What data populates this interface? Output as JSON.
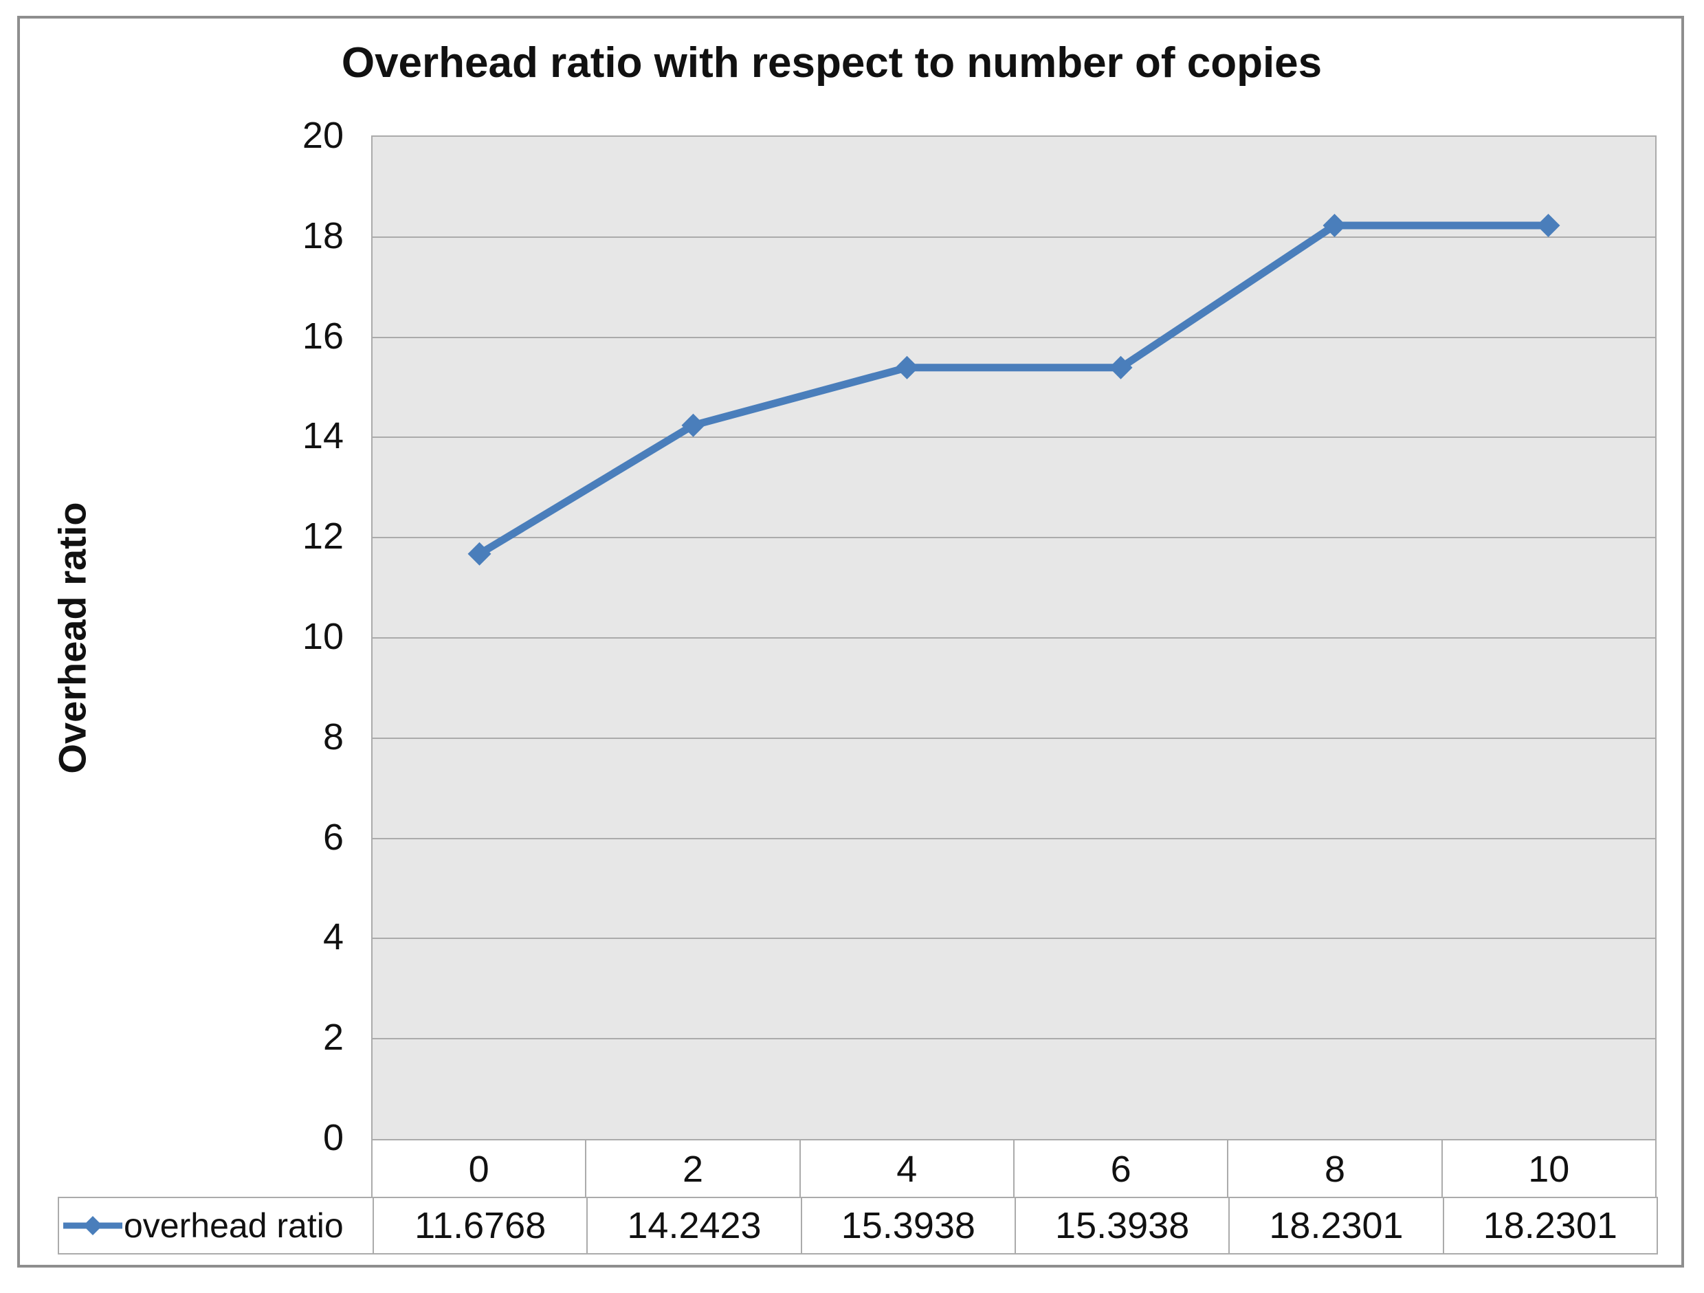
{
  "chart_data": {
    "type": "line",
    "title": "Overhead ratio with respect to number of copies",
    "ylabel": "Overhead ratio",
    "xlabel": "",
    "categories": [
      "0",
      "2",
      "4",
      "6",
      "8",
      "10"
    ],
    "series": [
      {
        "name": "overhead ratio",
        "values": [
          11.6768,
          14.2423,
          15.3938,
          15.3938,
          18.2301,
          18.2301
        ]
      }
    ],
    "ylim": [
      0,
      20
    ],
    "ytick_step": 2,
    "grid": "horizontal-major",
    "legend_position": "bottom-left-of-data-table",
    "marker": "diamond",
    "value_decimals": 4
  },
  "colors": {
    "series": "#4A7EBB",
    "plot_background": "#E7E7E7",
    "gridline": "#ABABAB",
    "table_border": "#ABABAB",
    "frame_border": "#8E8E8E",
    "text": "#111111"
  }
}
